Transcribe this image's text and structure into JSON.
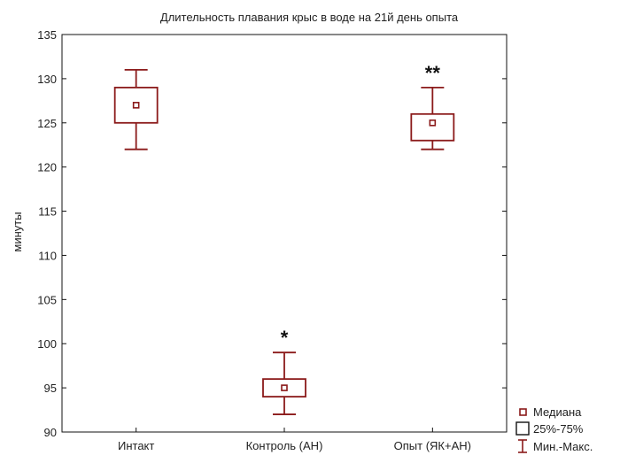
{
  "chart_data": {
    "type": "box",
    "title": "Длительность плавания крыс в воде на 21й день опыта",
    "ylabel": "минуты",
    "xlabel": "",
    "ylim": [
      90,
      135
    ],
    "yticks": [
      90,
      95,
      100,
      105,
      110,
      115,
      120,
      125,
      130,
      135
    ],
    "grid": false,
    "categories": [
      "Интакт",
      "Контроль (АН)",
      "Опыт (ЯК+АН)"
    ],
    "boxes": [
      {
        "category": "Интакт",
        "median": 127,
        "q1": 125,
        "q3": 129,
        "min": 122,
        "max": 131,
        "annotation": ""
      },
      {
        "category": "Контроль (АН)",
        "median": 95,
        "q1": 94,
        "q3": 96,
        "min": 92,
        "max": 99,
        "annotation": "*"
      },
      {
        "category": "Опыт (ЯК+АН)",
        "median": 125,
        "q1": 123,
        "q3": 126,
        "min": 122,
        "max": 129,
        "annotation": "**"
      }
    ],
    "legend": {
      "placement": "bottom-right",
      "items": [
        {
          "symbol": "median",
          "label": "Медиана"
        },
        {
          "symbol": "box",
          "label": "25%-75%"
        },
        {
          "symbol": "whisker",
          "label": "Мин.-Макс."
        }
      ]
    },
    "colors": {
      "box": "#8b1a1a",
      "axis": "#111111",
      "text": "#222222"
    }
  }
}
